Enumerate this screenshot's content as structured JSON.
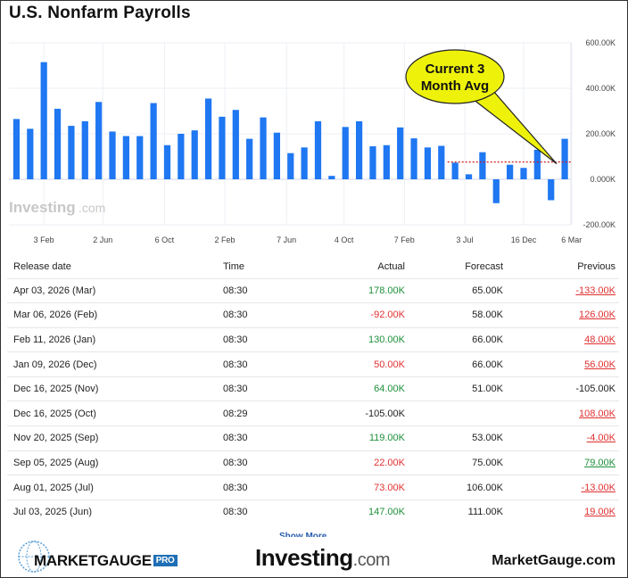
{
  "title": "U.S. Nonfarm Payrolls",
  "chart_data": {
    "type": "bar",
    "values": [
      265,
      222,
      515,
      310,
      235,
      255,
      340,
      210,
      190,
      190,
      335,
      150,
      200,
      215,
      355,
      275,
      305,
      178,
      272,
      205,
      115,
      140,
      255,
      15,
      230,
      255,
      145,
      150,
      228,
      180,
      140,
      147,
      73,
      22,
      119,
      -105,
      64,
      50,
      130,
      -92,
      178
    ],
    "x_tick_labels": [
      "3 Feb",
      "2 Jun",
      "6 Oct",
      "2 Feb",
      "7 Jun",
      "4 Oct",
      "7 Feb",
      "3 Jul",
      "16 Dec",
      "6 Mar"
    ],
    "x_tick_index": [
      2,
      6.3,
      10.8,
      15.2,
      19.7,
      23.9,
      28.3,
      32.7,
      37,
      40.5
    ],
    "y_tick_labels": [
      "600.00K",
      "400.00K",
      "200.00K",
      "0.000K",
      "-200.00K"
    ],
    "y_tick_values": [
      600,
      400,
      200,
      0,
      -200
    ],
    "ylim": [
      -200,
      600
    ],
    "moving_average_line": 76,
    "moving_average_start_index": 32,
    "bar_color": "#1f77f2",
    "avg_line_color": "#cc1a1a",
    "callout": {
      "text_line1": "Current 3",
      "text_line2": "Month Avg",
      "fill": "#eef20a"
    },
    "watermark": {
      "brand": "Investing",
      "domain": ".com"
    },
    "grid": true
  },
  "table": {
    "headers": [
      "Release date",
      "Time",
      "Actual",
      "Forecast",
      "Previous"
    ],
    "rows": [
      {
        "date": "Apr 03, 2026 (Mar)",
        "time": "08:30",
        "actual": "178.00K",
        "actual_status": "green",
        "forecast": "65.00K",
        "previous": "-133.00K",
        "previous_status": "red"
      },
      {
        "date": "Mar 06, 2026 (Feb)",
        "time": "08:30",
        "actual": "-92.00K",
        "actual_status": "red",
        "forecast": "58.00K",
        "previous": "126.00K",
        "previous_status": "red"
      },
      {
        "date": "Feb 11, 2026 (Jan)",
        "time": "08:30",
        "actual": "130.00K",
        "actual_status": "green",
        "forecast": "66.00K",
        "previous": "48.00K",
        "previous_status": "red"
      },
      {
        "date": "Jan 09, 2026 (Dec)",
        "time": "08:30",
        "actual": "50.00K",
        "actual_status": "red",
        "forecast": "66.00K",
        "previous": "56.00K",
        "previous_status": "red"
      },
      {
        "date": "Dec 16, 2025 (Nov)",
        "time": "08:30",
        "actual": "64.00K",
        "actual_status": "green",
        "forecast": "51.00K",
        "previous": "-105.00K",
        "previous_status": "plain"
      },
      {
        "date": "Dec 16, 2025 (Oct)",
        "time": "08:29",
        "actual": "-105.00K",
        "actual_status": "plain",
        "forecast": "",
        "previous": "108.00K",
        "previous_status": "red"
      },
      {
        "date": "Nov 20, 2025 (Sep)",
        "time": "08:30",
        "actual": "119.00K",
        "actual_status": "green",
        "forecast": "53.00K",
        "previous": "-4.00K",
        "previous_status": "red"
      },
      {
        "date": "Sep 05, 2025 (Aug)",
        "time": "08:30",
        "actual": "22.00K",
        "actual_status": "red",
        "forecast": "75.00K",
        "previous": "79.00K",
        "previous_status": "green"
      },
      {
        "date": "Aug 01, 2025 (Jul)",
        "time": "08:30",
        "actual": "73.00K",
        "actual_status": "red",
        "forecast": "106.00K",
        "previous": "-13.00K",
        "previous_status": "red"
      },
      {
        "date": "Jul 03, 2025 (Jun)",
        "time": "08:30",
        "actual": "147.00K",
        "actual_status": "green",
        "forecast": "111.00K",
        "previous": "19.00K",
        "previous_status": "red"
      }
    ]
  },
  "footer": {
    "show_more": "Show More",
    "marketgauge_logo": "MARKETGAUGE",
    "marketgauge_pro": "PRO",
    "investing_logo": "Investing",
    "investing_domain": ".com",
    "marketgauge_site": "MarketGauge.com"
  }
}
